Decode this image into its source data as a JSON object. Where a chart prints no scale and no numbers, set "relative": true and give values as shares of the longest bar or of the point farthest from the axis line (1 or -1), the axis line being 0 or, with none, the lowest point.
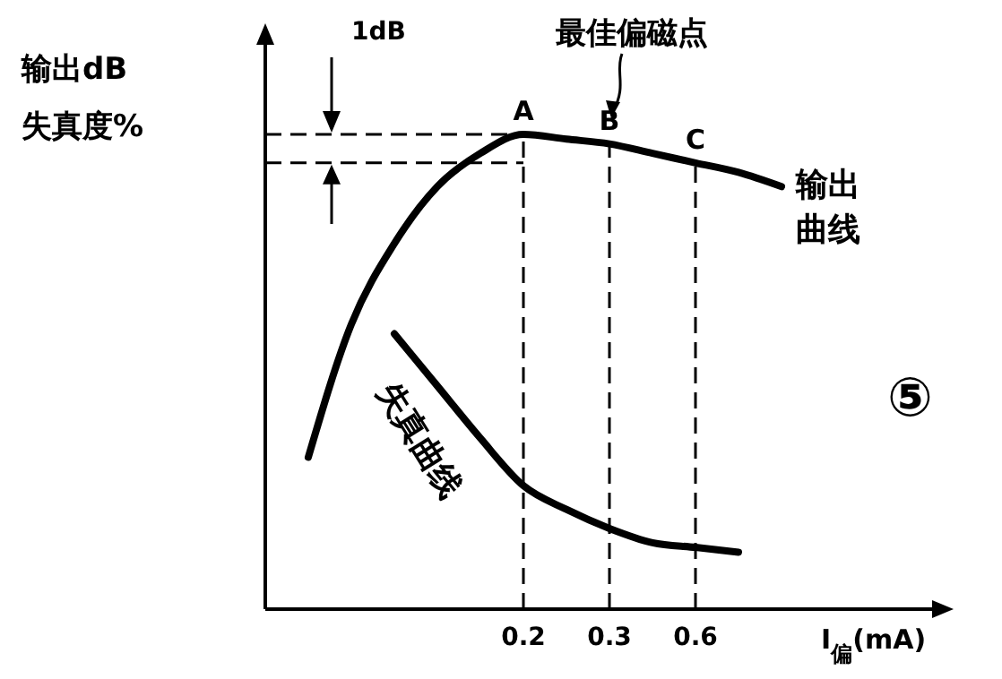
{
  "chart_data": {
    "type": "line",
    "relative": true,
    "ylabel": "输出dB\n失真度%",
    "xlabel": "I$_{偏}$(mA)",
    "categories": [
      null,
      null,
      null,
      null,
      null,
      null,
      "0.2",
      null,
      "0.3",
      null,
      "0.6",
      null,
      null,
      null,
      null,
      null
    ],
    "series": [
      {
        "name": "输出曲线",
        "color": "#000000",
        "values": [
          null,
          0.32,
          0.6,
          0.77,
          0.89,
          0.96,
          1,
          0.99,
          0.98,
          0.96,
          0.94,
          0.92,
          0.89,
          null,
          null,
          null
        ]
      },
      {
        "name": "失真曲线",
        "color": "#000000",
        "values": [
          null,
          null,
          null,
          0.58,
          0.47,
          0.36,
          0.26,
          0.21,
          0.17,
          0.14,
          0.13,
          0.12,
          null,
          null,
          null,
          null
        ]
      }
    ],
    "ref_lines": [
      {
        "axis": "y",
        "value": 1,
        "line_style": "dashed"
      },
      {
        "axis": "y",
        "value": 0.94,
        "line_style": "dashed"
      },
      {
        "axis": "x",
        "value": "0.2",
        "line_style": "dashed"
      },
      {
        "axis": "x",
        "value": "0.3",
        "line_style": "dashed"
      },
      {
        "axis": "x",
        "value": "0.6",
        "line_style": "dashed"
      }
    ],
    "annotations": [
      "1dB",
      "最佳偏磁点",
      "⑤",
      {
        "text": "A",
        "x": "0.2",
        "y": 1
      },
      {
        "text": "B",
        "x": "0.3",
        "y": 0.98
      },
      {
        "text": "C",
        "x": "0.6",
        "y": 0.94
      }
    ],
    "marker": "none",
    "line_style": "solid"
  }
}
